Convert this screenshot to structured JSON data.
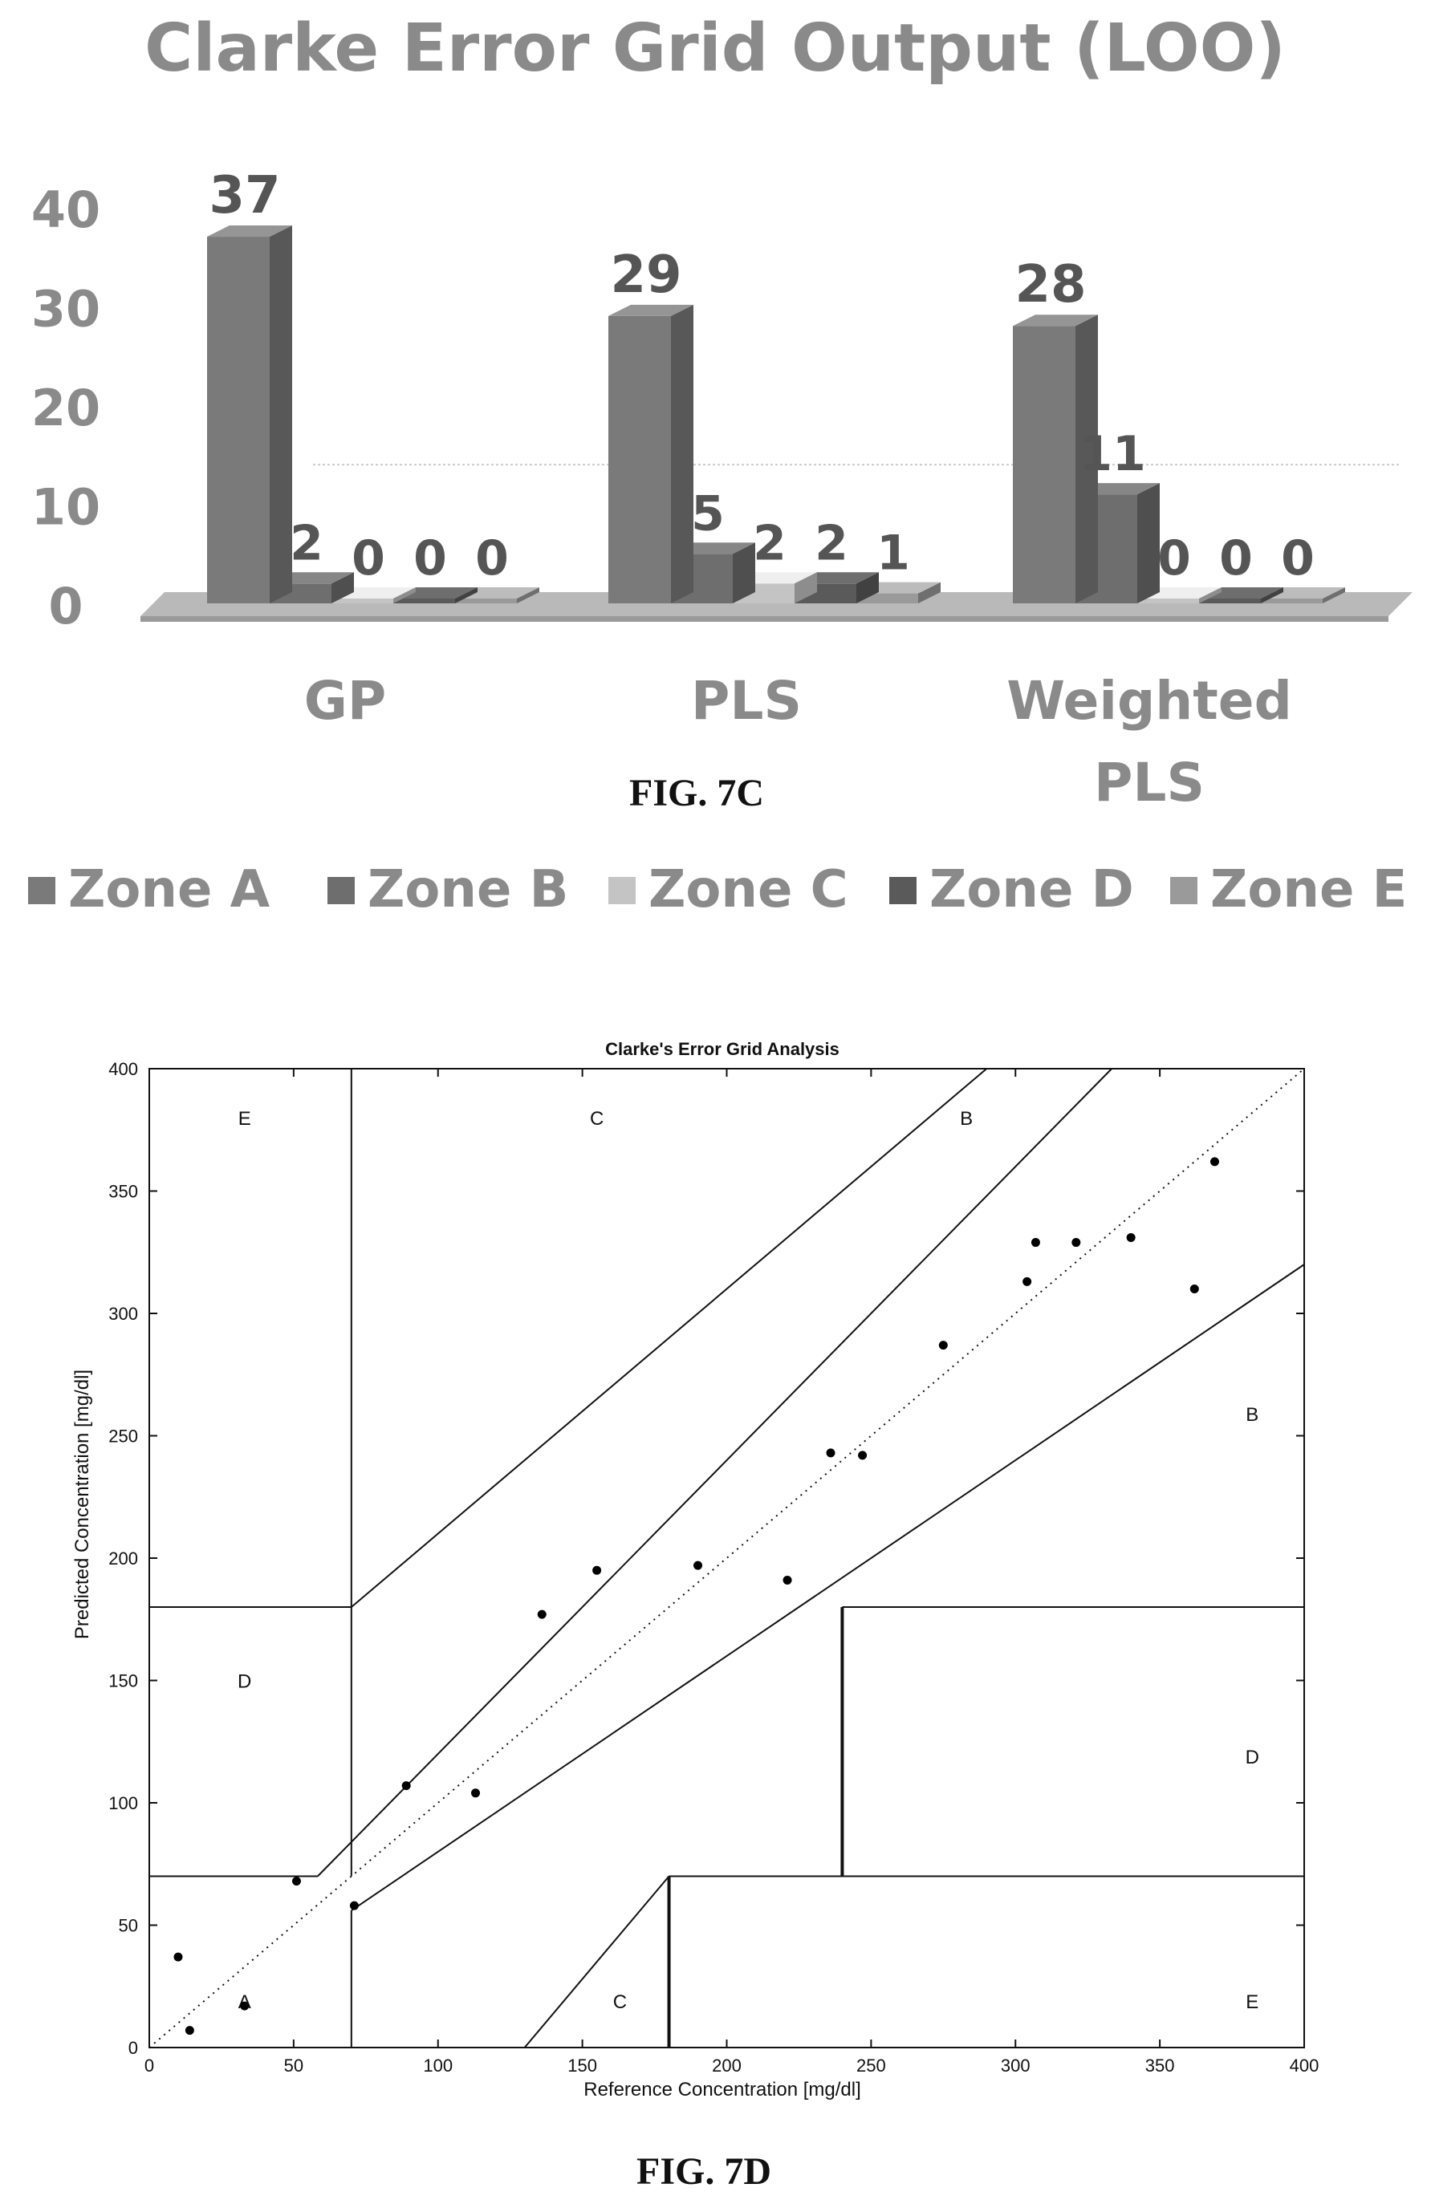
{
  "chart_data": [
    {
      "type": "bar",
      "title": "Clarke Error Grid Output (LOO)",
      "categories": [
        "GP",
        "PLS",
        "Weighted PLS"
      ],
      "series": [
        {
          "name": "Zone A",
          "values": [
            37,
            29,
            28
          ],
          "color": "#7a7a7a"
        },
        {
          "name": "Zone B",
          "values": [
            2,
            5,
            11
          ],
          "color": "#6e6e6e"
        },
        {
          "name": "Zone C",
          "values": [
            0,
            2,
            0
          ],
          "color": "#c4c4c4"
        },
        {
          "name": "Zone D",
          "values": [
            0,
            2,
            0
          ],
          "color": "#5a5a5a"
        },
        {
          "name": "Zone E",
          "values": [
            0,
            1,
            0
          ],
          "color": "#9a9a9a"
        }
      ],
      "ylim": [
        0,
        40
      ],
      "yticks": [
        0,
        10,
        20,
        30,
        40
      ],
      "legend_position": "bottom",
      "caption": "FIG. 7C"
    },
    {
      "type": "scatter",
      "title": "Clarke's Error Grid Analysis",
      "xlabel": "Reference Concentration [mg/dl]",
      "ylabel": "Predicted Concentration [mg/dl]",
      "xlim": [
        0,
        400
      ],
      "ylim": [
        0,
        400
      ],
      "xticks": [
        0,
        50,
        100,
        150,
        200,
        250,
        300,
        350,
        400
      ],
      "yticks": [
        0,
        50,
        100,
        150,
        200,
        250,
        300,
        350,
        400
      ],
      "points": [
        {
          "x": 10,
          "y": 37
        },
        {
          "x": 14,
          "y": 7
        },
        {
          "x": 33,
          "y": 17
        },
        {
          "x": 51,
          "y": 68
        },
        {
          "x": 71,
          "y": 58
        },
        {
          "x": 89,
          "y": 107
        },
        {
          "x": 113,
          "y": 104
        },
        {
          "x": 136,
          "y": 177
        },
        {
          "x": 155,
          "y": 195
        },
        {
          "x": 190,
          "y": 197
        },
        {
          "x": 221,
          "y": 191
        },
        {
          "x": 236,
          "y": 243
        },
        {
          "x": 247,
          "y": 242
        },
        {
          "x": 275,
          "y": 287
        },
        {
          "x": 304,
          "y": 313
        },
        {
          "x": 307,
          "y": 329
        },
        {
          "x": 321,
          "y": 329
        },
        {
          "x": 340,
          "y": 331
        },
        {
          "x": 362,
          "y": 310
        },
        {
          "x": 369,
          "y": 362
        }
      ],
      "zone_labels": [
        {
          "text": "E",
          "x": 33,
          "y": 380
        },
        {
          "text": "C",
          "x": 155,
          "y": 380
        },
        {
          "text": "B",
          "x": 283,
          "y": 380
        },
        {
          "text": "B",
          "x": 382,
          "y": 259
        },
        {
          "text": "D",
          "x": 33,
          "y": 150
        },
        {
          "text": "D",
          "x": 382,
          "y": 119
        },
        {
          "text": "A",
          "x": 33,
          "y": 19
        },
        {
          "text": "C",
          "x": 163,
          "y": 19
        },
        {
          "text": "E",
          "x": 382,
          "y": 19
        }
      ],
      "grid": false,
      "identity_line": true,
      "caption": "FIG. 7D"
    }
  ]
}
